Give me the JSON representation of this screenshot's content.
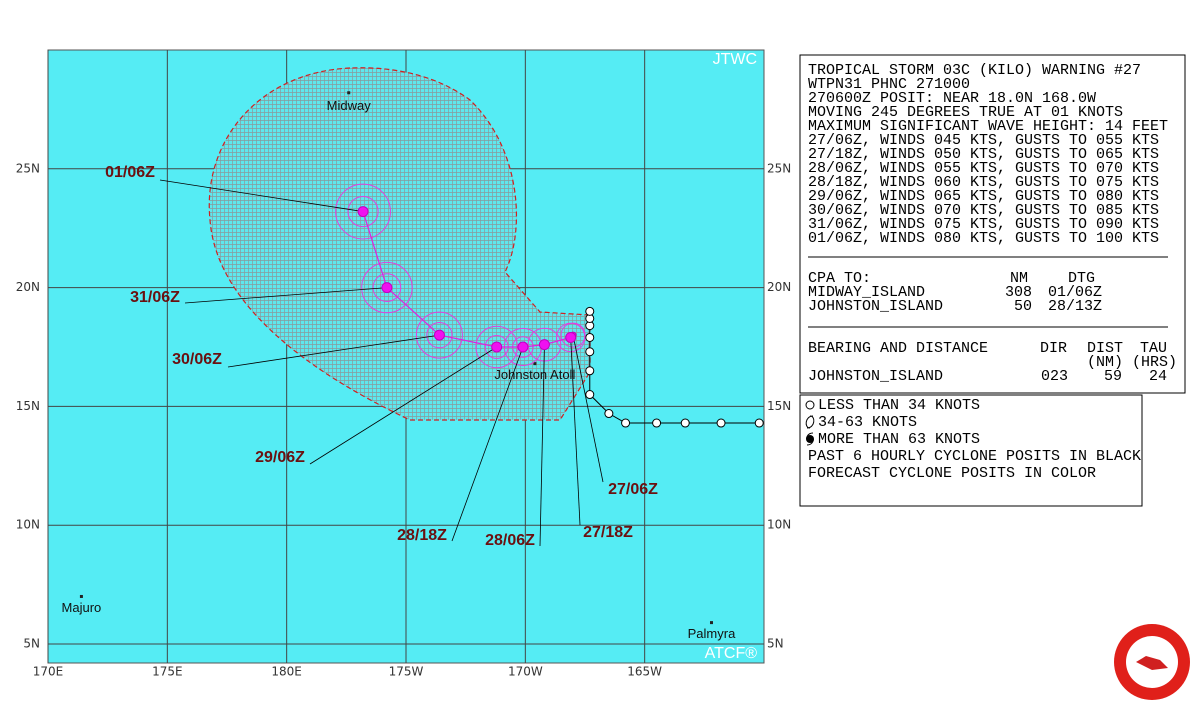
{
  "map": {
    "xlim": [
      170,
      200
    ],
    "ylim": [
      4.2,
      30
    ],
    "lon_ticks": [
      {
        "value": 170,
        "label": "170E"
      },
      {
        "value": 175,
        "label": "175E"
      },
      {
        "value": 180,
        "label": "180E"
      },
      {
        "value": 185,
        "label": "175W"
      },
      {
        "value": 190,
        "label": "170W"
      },
      {
        "value": 195,
        "label": "165W"
      }
    ],
    "lat_ticks": [
      {
        "value": 25,
        "label": "25N"
      },
      {
        "value": 20,
        "label": "20N"
      },
      {
        "value": 15,
        "label": "15N"
      },
      {
        "value": 10,
        "label": "10N"
      },
      {
        "value": 5,
        "label": "5N"
      }
    ],
    "badge_top": "JTWC",
    "badge_bottom": "ATCF®",
    "places": [
      {
        "name": "Midway",
        "lat": 28.2,
        "lon": 182.6
      },
      {
        "name": "Johnston Atoll",
        "lat": 16.8,
        "lon": 190.4
      },
      {
        "name": "Majuro",
        "lat": 7.0,
        "lon": 171.4
      },
      {
        "name": "Palmyra",
        "lat": 5.9,
        "lon": 197.8
      }
    ],
    "past_track": {
      "lat": [
        14.3,
        14.3,
        14.3,
        14.3,
        14.3,
        14.7,
        15.5,
        16.5,
        17.3,
        17.9,
        18.4,
        18.7,
        19.0
      ],
      "lon": [
        199.8,
        198.2,
        196.7,
        195.5,
        194.2,
        193.5,
        192.7,
        192.7,
        192.7,
        192.7,
        192.7,
        192.7,
        192.7
      ]
    },
    "forecast_track": [
      {
        "label": "27/06Z",
        "lat": 18.0,
        "lon": 192.0
      },
      {
        "label": "27/18Z",
        "lat": 17.9,
        "lon": 191.9
      },
      {
        "label": "28/06Z",
        "lat": 17.6,
        "lon": 190.8
      },
      {
        "label": "28/18Z",
        "lat": 17.5,
        "lon": 189.9
      },
      {
        "label": "29/06Z",
        "lat": 17.5,
        "lon": 188.8
      },
      {
        "label": "30/06Z",
        "lat": 18.0,
        "lon": 186.4
      },
      {
        "label": "31/06Z",
        "lat": 20.0,
        "lon": 184.2
      },
      {
        "label": "01/06Z",
        "lat": 23.2,
        "lon": 183.2
      }
    ]
  },
  "warning": {
    "lines": [
      "TROPICAL STORM 03C (KILO) WARNING #27",
      "WTPN31 PHNC 271000",
      "270600Z POSIT: NEAR 18.0N 168.0W",
      "MOVING 245 DEGREES TRUE AT 01 KNOTS",
      "MAXIMUM SIGNIFICANT WAVE HEIGHT: 14 FEET",
      "27/06Z, WINDS 045 KTS, GUSTS TO 055 KTS",
      "27/18Z, WINDS 050 KTS, GUSTS TO 065 KTS",
      "28/06Z, WINDS 055 KTS, GUSTS TO 070 KTS",
      "28/18Z, WINDS 060 KTS, GUSTS TO 075 KTS",
      "29/06Z, WINDS 065 KTS, GUSTS TO 080 KTS",
      "30/06Z, WINDS 070 KTS, GUSTS TO 085 KTS",
      "31/06Z, WINDS 075 KTS, GUSTS TO 090 KTS",
      "01/06Z, WINDS 080 KTS, GUSTS TO 100 KTS"
    ],
    "cpa_header": [
      "CPA TO:",
      "NM",
      "DTG"
    ],
    "cpa_rows": [
      [
        "MIDWAY_ISLAND",
        "308",
        "01/06Z"
      ],
      [
        "JOHNSTON_ISLAND",
        "50",
        "28/13Z"
      ]
    ],
    "bearing_header": [
      "BEARING AND DISTANCE",
      "DIR",
      "DIST",
      "TAU"
    ],
    "bearing_units": [
      "(NM)",
      "(HRS)"
    ],
    "bearing_rows": [
      [
        "JOHNSTON_ISLAND",
        "023",
        "59",
        "24"
      ]
    ]
  },
  "legend": [
    "LESS THAN 34 KNOTS",
    "34-63 KNOTS",
    "MORE THAN 63 KNOTS",
    "PAST 6 HOURLY CYCLONE POSITS IN BLACK",
    "FORECAST CYCLONE POSITS IN COLOR"
  ]
}
